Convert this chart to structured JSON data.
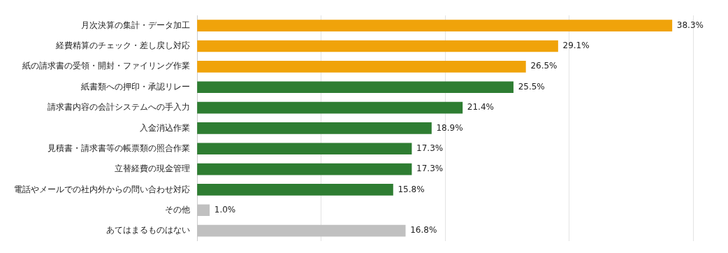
{
  "chart_data": {
    "type": "bar",
    "orientation": "horizontal",
    "categories": [
      "月次決算の集計・データ加工",
      "経費精算のチェック・差し戻し対応",
      "紙の請求書の受領・開封・ファイリング作業",
      "紙書類への押印・承認リレー",
      "請求書内容の会計システムへの手入力",
      "入金消込作業",
      "見積書・請求書等の帳票類の照合作業",
      "立替経費の現金管理",
      "電話やメールでの社内外からの問い合わせ対応",
      "その他",
      "あてはまるものはない"
    ],
    "values": [
      38.3,
      29.1,
      26.5,
      25.5,
      21.4,
      18.9,
      17.3,
      17.3,
      15.8,
      1.0,
      16.8
    ],
    "value_labels": [
      "38.3%",
      "29.1%",
      "26.5%",
      "25.5%",
      "21.4%",
      "18.9%",
      "17.3%",
      "17.3%",
      "15.8%",
      "1.0%",
      "16.8%"
    ],
    "colors": [
      "#f0a30a",
      "#f0a30a",
      "#f0a30a",
      "#2e7d32",
      "#2e7d32",
      "#2e7d32",
      "#2e7d32",
      "#2e7d32",
      "#2e7d32",
      "#c0c0c0",
      "#c0c0c0"
    ],
    "xlim": [
      0,
      40
    ],
    "xticks": [
      {
        "value": 0,
        "label": null
      },
      {
        "value": 10,
        "label": null
      },
      {
        "value": 20,
        "label": null
      },
      {
        "value": 30,
        "label": null
      },
      {
        "value": 40,
        "label": null
      }
    ],
    "grid": "x",
    "legend": false,
    "tick_labels": "y"
  }
}
